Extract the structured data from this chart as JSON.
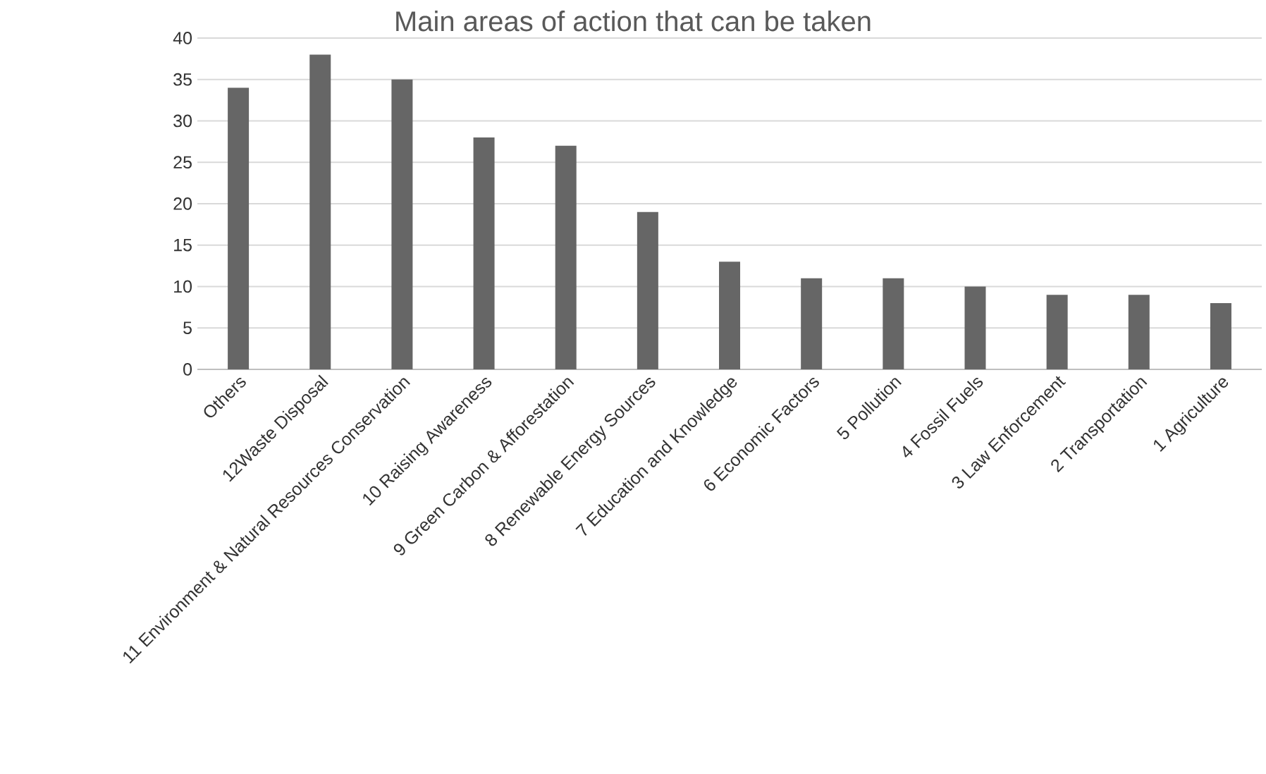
{
  "chart_data": {
    "type": "bar",
    "title": "Main areas of action that can be taken",
    "categories": [
      "Others",
      "12Waste Disposal",
      "11 Environment & Natural Resources Conservation",
      "10 Raising Awareness",
      "9 Green Carbon & Afforestation",
      "8 Renewable Energy Sources",
      "7 Education and Knowledge",
      "6 Economic Factors",
      "5 Pollution",
      "4 Fossil Fuels",
      "3 Law Enforcement",
      "2 Transportation",
      "1 Agriculture"
    ],
    "values": [
      34,
      38,
      35,
      28,
      27,
      19,
      13,
      11,
      11,
      10,
      9,
      9,
      8
    ],
    "color": "#666666",
    "ylim": [
      0,
      40
    ],
    "yticks": [
      0,
      5,
      10,
      15,
      20,
      25,
      30,
      35,
      40
    ],
    "grid": "y"
  }
}
